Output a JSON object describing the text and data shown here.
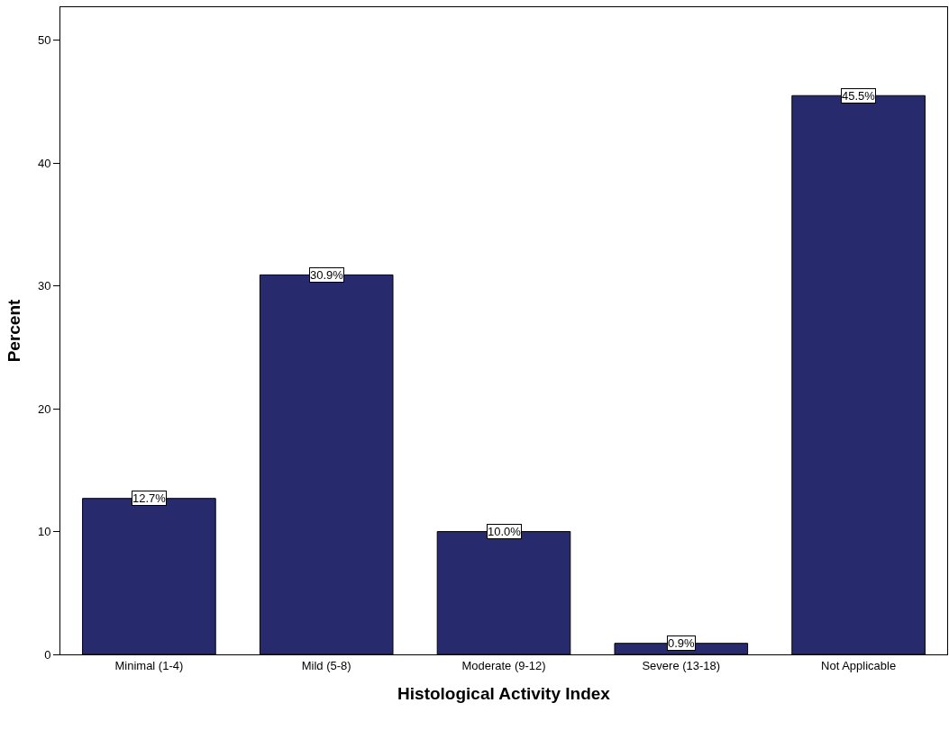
{
  "chart_data": {
    "type": "bar",
    "xlabel": "Histological Activity Index",
    "ylabel": "Percent",
    "categories": [
      "Minimal (1-4)",
      "Mild (5-8)",
      "Moderate (9-12)",
      "Severe (13-18)",
      "Not Applicable"
    ],
    "values": [
      12.7,
      30.9,
      10.0,
      0.9,
      45.5
    ],
    "value_labels": [
      "12.7%",
      "30.9%",
      "10.0%",
      "0.9%",
      "45.5%"
    ],
    "color": "#282a6e",
    "ylim": [
      0,
      52.7
    ],
    "yticks": [
      0,
      10,
      20,
      30,
      40,
      50
    ],
    "grid": false,
    "legend": false
  }
}
